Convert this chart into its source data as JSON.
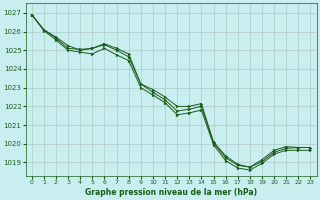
{
  "title": "Graphe pression niveau de la mer (hPa)",
  "bg_color": "#c8eef0",
  "grid_color": "#b0c8c8",
  "line_color": "#1a5c1a",
  "marker_color": "#1a5c1a",
  "xlim": [
    -0.5,
    23.5
  ],
  "ylim": [
    1018.3,
    1027.5
  ],
  "xticks": [
    0,
    1,
    2,
    3,
    4,
    5,
    6,
    7,
    8,
    9,
    10,
    11,
    12,
    13,
    14,
    15,
    16,
    17,
    18,
    19,
    20,
    21,
    22,
    23
  ],
  "yticks": [
    1019,
    1020,
    1021,
    1022,
    1023,
    1024,
    1025,
    1026,
    1027
  ],
  "series1": {
    "x": [
      0,
      1,
      2,
      3,
      4,
      5,
      6,
      7,
      8,
      9,
      10,
      11,
      12,
      13,
      14,
      15,
      16,
      17,
      18,
      19,
      20,
      21,
      22,
      23
    ],
    "y": [
      1026.9,
      1026.1,
      1025.65,
      1025.1,
      1025.05,
      1025.1,
      1025.3,
      1025.0,
      1024.65,
      1023.2,
      1022.75,
      1022.35,
      1021.75,
      1021.85,
      1022.0,
      1020.05,
      1019.25,
      1018.85,
      1018.75,
      1019.15,
      1019.65,
      1019.85,
      1019.8,
      1019.8
    ]
  },
  "series2": {
    "x": [
      0,
      1,
      2,
      3,
      4,
      5,
      6,
      7,
      8,
      9,
      10,
      11,
      12,
      13,
      14,
      15,
      16,
      17,
      18,
      19,
      20,
      21,
      22,
      23
    ],
    "y": [
      1026.9,
      1026.1,
      1025.7,
      1025.25,
      1025.0,
      1025.1,
      1025.35,
      1025.1,
      1024.8,
      1023.2,
      1022.9,
      1022.5,
      1022.0,
      1022.0,
      1022.15,
      1020.1,
      1019.35,
      1018.9,
      1018.75,
      1019.05,
      1019.55,
      1019.75,
      1019.8,
      1019.8
    ]
  },
  "series3": {
    "x": [
      0,
      1,
      2,
      3,
      4,
      5,
      6,
      7,
      8,
      9,
      10,
      11,
      12,
      13,
      14,
      15,
      16,
      17,
      18,
      19,
      20,
      21,
      22,
      23
    ],
    "y": [
      1026.9,
      1026.05,
      1025.55,
      1025.0,
      1024.9,
      1024.8,
      1025.1,
      1024.75,
      1024.45,
      1023.0,
      1022.6,
      1022.2,
      1021.55,
      1021.65,
      1021.8,
      1019.95,
      1019.1,
      1018.7,
      1018.6,
      1018.95,
      1019.45,
      1019.65,
      1019.65,
      1019.65
    ]
  }
}
